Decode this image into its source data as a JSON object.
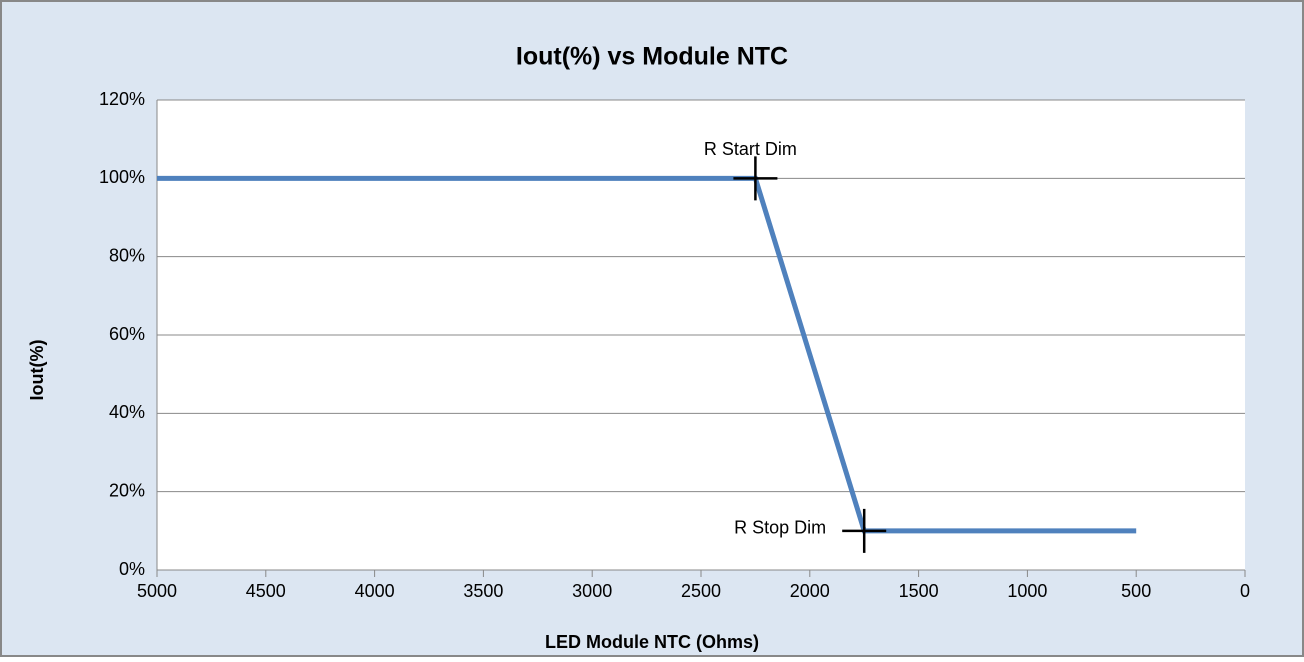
{
  "chart_data": {
    "type": "line",
    "title": "Iout(%) vs Module NTC",
    "x_label": "LED Module NTC (Ohms)",
    "y_label": "Iout(%)",
    "series": [
      {
        "name": "Iout(%)",
        "color": "#4f81bd",
        "x": [
          5000,
          2250,
          1750,
          500
        ],
        "values": [
          100,
          100,
          10,
          10
        ]
      }
    ],
    "xlim": [
      5000,
      0
    ],
    "xticks": [
      5000,
      4500,
      4000,
      3500,
      3000,
      2500,
      2000,
      1500,
      1000,
      500,
      0
    ],
    "ylim": [
      0,
      120
    ],
    "yticks": [
      {
        "value": 0,
        "label": "0%"
      },
      {
        "value": 20,
        "label": "20%"
      },
      {
        "value": 40,
        "label": "40%"
      },
      {
        "value": 60,
        "label": "60%"
      },
      {
        "value": 80,
        "label": "80%"
      },
      {
        "value": 100,
        "label": "100%"
      },
      {
        "value": 120,
        "label": "120%"
      }
    ],
    "grid": true,
    "annotations": [
      {
        "text": "R Start Dim",
        "x": 2250,
        "y": 100
      },
      {
        "text": "R Stop Dim",
        "x": 1750,
        "y": 10
      }
    ]
  }
}
